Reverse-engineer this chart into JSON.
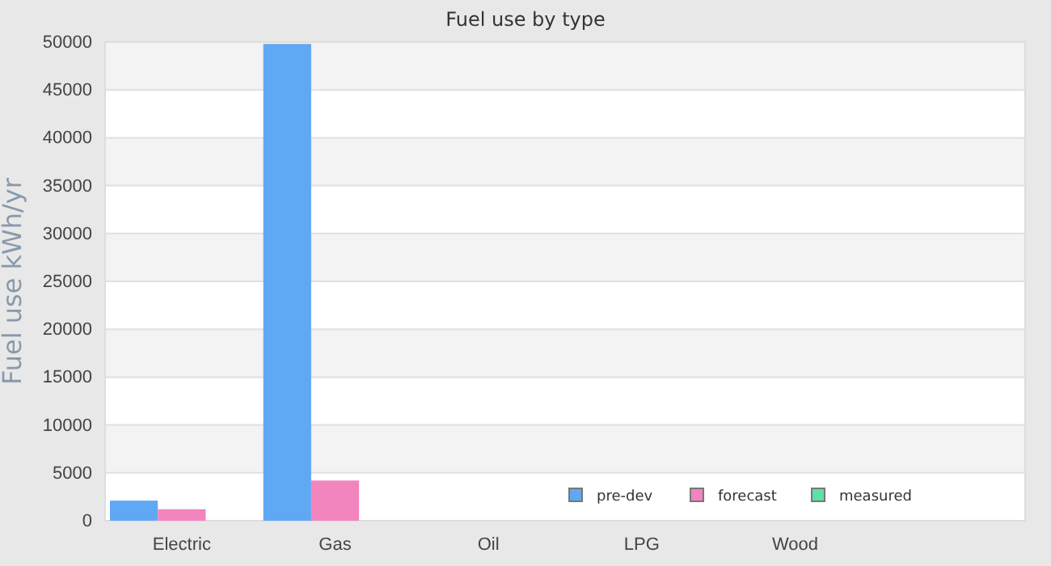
{
  "chart_data": {
    "type": "bar",
    "title": "Fuel use by type",
    "ylabel": "Fuel use  kWh/yr",
    "categories": [
      "Electric",
      "Gas",
      "Oil",
      "LPG",
      "Wood",
      null
    ],
    "series": [
      {
        "name": "pre-dev",
        "color": "#60a8f4",
        "values": [
          2100,
          49800,
          0,
          0,
          0,
          null
        ]
      },
      {
        "name": "forecast",
        "color": "#f285bd",
        "values": [
          1200,
          4200,
          0,
          0,
          0,
          null
        ]
      },
      {
        "name": "measured",
        "color": "#5fe0a4",
        "values": [
          null,
          null,
          null,
          null,
          null,
          null
        ]
      }
    ],
    "ylim": [
      0,
      50000
    ],
    "yticks": [
      0,
      5000,
      10000,
      15000,
      20000,
      25000,
      30000,
      35000,
      40000,
      45000,
      50000
    ],
    "grid": "y",
    "legend": "bottom"
  }
}
